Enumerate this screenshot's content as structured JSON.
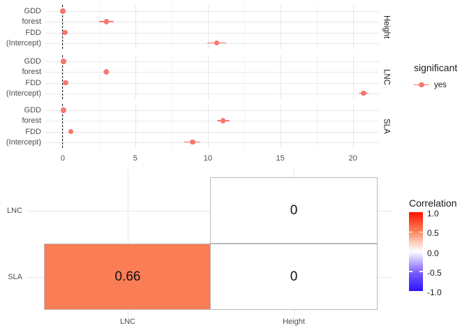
{
  "chart_data": [
    {
      "type": "scatter",
      "mark": "pointrange",
      "title": "",
      "xlabel": "",
      "ylabel": "",
      "xlim": [
        -1.2,
        21.8
      ],
      "x_ticks": [
        0,
        5,
        10,
        15,
        20
      ],
      "x_minor_ticks": [
        2.5,
        7.5,
        12.5,
        17.5
      ],
      "grid": true,
      "zero_line": {
        "x": 0,
        "style": "dashed",
        "color": "#1a1a1a"
      },
      "point_color": "#F8766D",
      "facets": [
        {
          "label": "Height",
          "terms": [
            "GDD",
            "forest",
            "FDD",
            "(Intercept)"
          ],
          "estimates": [
            0.0,
            3.0,
            0.15,
            10.6
          ],
          "ci_low": [
            -0.05,
            2.5,
            0.0,
            9.95
          ],
          "ci_high": [
            0.1,
            3.5,
            0.3,
            11.25
          ]
        },
        {
          "label": "LNC",
          "terms": [
            "GDD",
            "forest",
            "FDD",
            "(Intercept)"
          ],
          "estimates": [
            0.05,
            3.0,
            0.2,
            20.75
          ],
          "ci_low": [
            0.0,
            2.8,
            0.05,
            20.4
          ],
          "ci_high": [
            0.15,
            3.2,
            0.35,
            21.1
          ]
        },
        {
          "label": "SLA",
          "terms": [
            "GDD",
            "forest",
            "FDD",
            "(Intercept)"
          ],
          "estimates": [
            0.05,
            11.05,
            0.55,
            8.95
          ],
          "ci_low": [
            -0.05,
            10.65,
            0.4,
            8.35
          ],
          "ci_high": [
            0.15,
            11.5,
            0.7,
            9.5
          ]
        }
      ],
      "legend": {
        "title": "significant",
        "items": [
          {
            "label": "yes",
            "color": "#F8766D"
          }
        ]
      }
    },
    {
      "type": "heatmap",
      "x_categories": [
        "LNC",
        "Height"
      ],
      "y_categories": [
        "LNC",
        "SLA"
      ],
      "cells": [
        {
          "row": "LNC",
          "col": "Height",
          "value": 0,
          "label": "0",
          "fill": "#FFFFFF"
        },
        {
          "row": "SLA",
          "col": "LNC",
          "value": 0.66,
          "label": "0.66",
          "fill": "#FB7D56"
        },
        {
          "row": "SLA",
          "col": "Height",
          "value": 0,
          "label": "0",
          "fill": "#FFFFFF"
        }
      ],
      "tile_border_color": "#B9B9B9",
      "legend": {
        "title": "Correlation",
        "position": "right",
        "tick_labels": [
          "1.0",
          "0.5",
          "0.0",
          "-0.5",
          "-1.0"
        ],
        "gradient_high": "#FF1200",
        "gradient_mid": "#FFFFFF",
        "gradient_low": "#2B12FF"
      }
    }
  ]
}
